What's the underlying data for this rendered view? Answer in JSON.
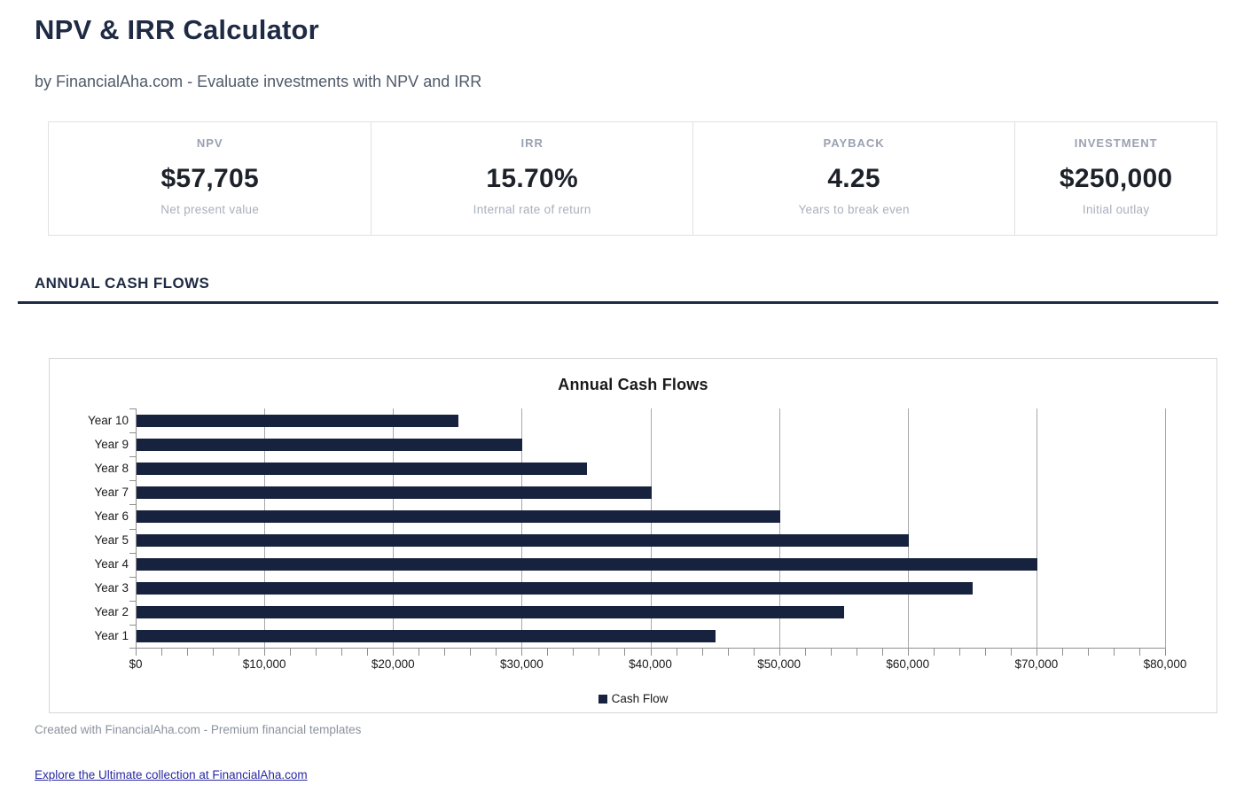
{
  "page": {
    "title": "NPV & IRR Calculator",
    "subtitle": "by FinancialAha.com - Evaluate investments with NPV and IRR",
    "section_heading": "ANNUAL CASH FLOWS",
    "footer_note": "Created with FinancialAha.com - Premium financial templates",
    "footer_link": "Explore the Ultimate collection at FinancialAha.com"
  },
  "cards": [
    {
      "label": "NPV",
      "value": "$57,705",
      "sub": "Net present value"
    },
    {
      "label": "IRR",
      "value": "15.70%",
      "sub": "Internal rate of return"
    },
    {
      "label": "PAYBACK",
      "value": "4.25",
      "sub": "Years to break even"
    },
    {
      "label": "INVESTMENT",
      "value": "$250,000",
      "sub": "Initial outlay"
    }
  ],
  "chart_data": {
    "type": "bar",
    "orientation": "horizontal",
    "title": "Annual Cash Flows",
    "categories": [
      "Year 1",
      "Year 2",
      "Year 3",
      "Year 4",
      "Year 5",
      "Year 6",
      "Year 7",
      "Year 8",
      "Year 9",
      "Year 10"
    ],
    "values": [
      45000,
      55000,
      65000,
      70000,
      60000,
      50000,
      40000,
      35000,
      30000,
      25000
    ],
    "category_order_top_to_bottom": [
      "Year 10",
      "Year 9",
      "Year 8",
      "Year 7",
      "Year 6",
      "Year 5",
      "Year 4",
      "Year 3",
      "Year 2",
      "Year 1"
    ],
    "series_name": "Cash Flow",
    "xlabel": "",
    "ylabel": "",
    "xlim": [
      0,
      80000
    ],
    "x_major_step": 10000,
    "x_minor_step": 2000,
    "x_tick_labels": [
      "$0",
      "$10,000",
      "$20,000",
      "$30,000",
      "$40,000",
      "$50,000",
      "$60,000",
      "$70,000",
      "$80,000"
    ],
    "grid": true,
    "legend_position": "bottom"
  },
  "colors": {
    "navy_heading": "#1f2a44",
    "bar_fill": "#17233e",
    "link_blue": "#2929a3"
  }
}
